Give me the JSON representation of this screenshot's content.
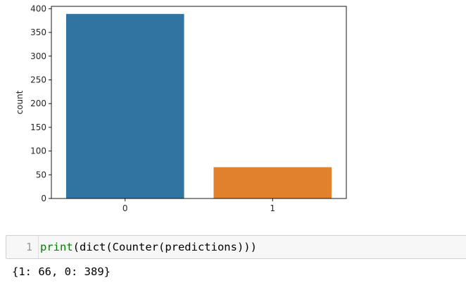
{
  "chart_data": {
    "type": "bar",
    "categories": [
      "0",
      "1"
    ],
    "values": [
      389,
      66
    ],
    "colors": [
      "#3274a1",
      "#e1812c"
    ],
    "xlabel": "",
    "ylabel": "count",
    "ylim": [
      0,
      405
    ],
    "yticks": [
      0,
      50,
      100,
      150,
      200,
      250,
      300,
      350,
      400
    ],
    "grid": false
  },
  "cell": {
    "line_number": "1",
    "code_builtin": "print",
    "code_rest": "(dict(Counter(predictions)))"
  },
  "output": {
    "text": "{1: 66, 0: 389}"
  }
}
